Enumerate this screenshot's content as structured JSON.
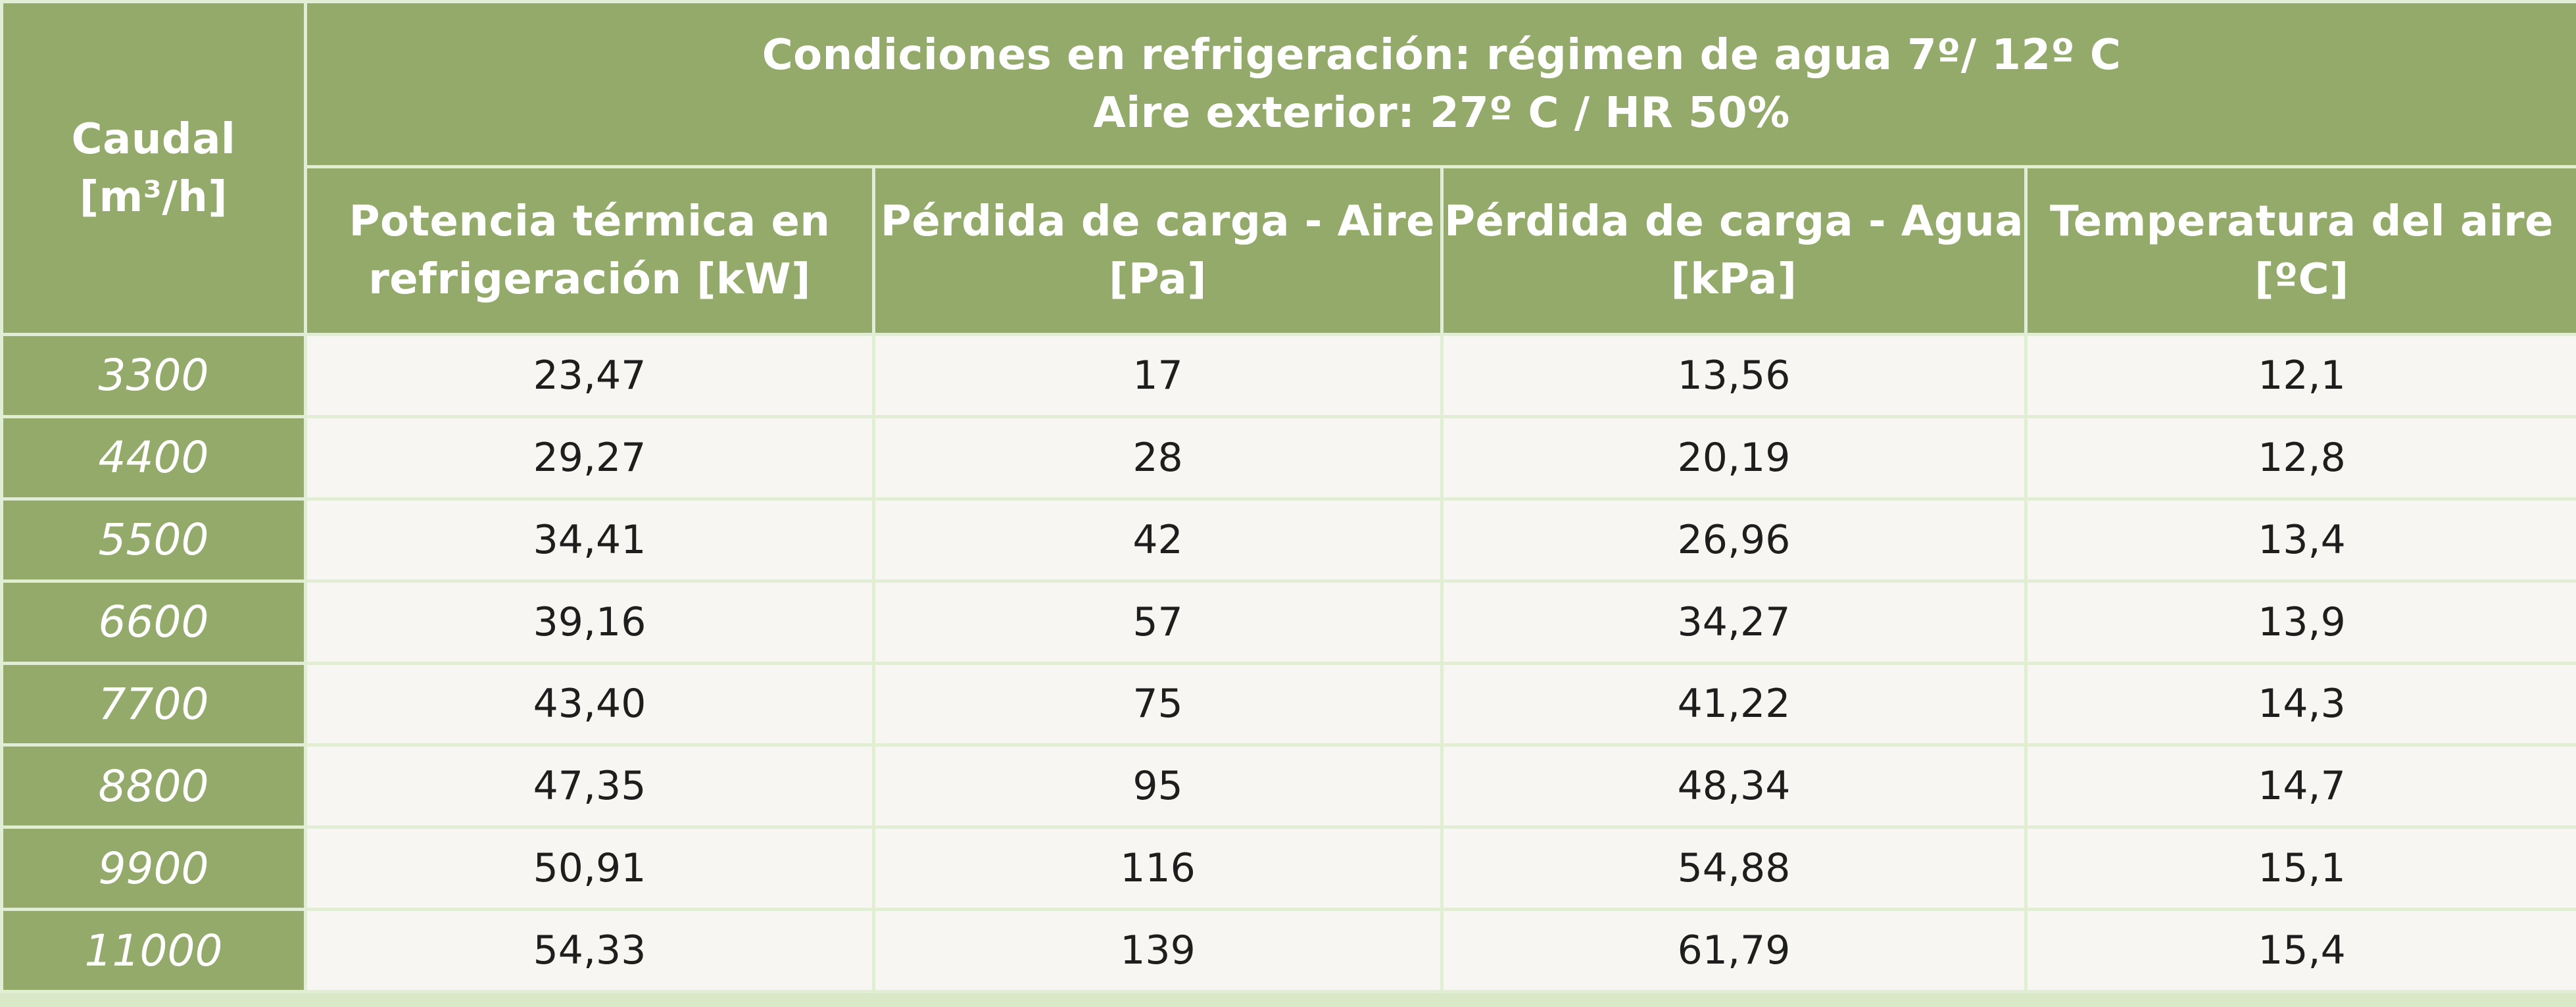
{
  "table": {
    "flow_header": [
      "Caudal",
      "[m³/h]"
    ],
    "conditions_title": [
      "Condiciones en refrigeración: régimen de agua 7º/ 12º C",
      "Aire exterior: 27º C / HR 50%"
    ],
    "columns": [
      [
        "Potencia térmica en",
        "refrigeración  [kW]"
      ],
      [
        "Pérdida de carga - Aire",
        "[Pa]"
      ],
      [
        "Pérdida de carga - Agua",
        "[kPa]"
      ],
      [
        "Temperatura del aire",
        "[ºC]"
      ]
    ],
    "rows": [
      {
        "flow": "3300",
        "cells": [
          "23,47",
          "17",
          "13,56",
          "12,1"
        ]
      },
      {
        "flow": "4400",
        "cells": [
          "29,27",
          "28",
          "20,19",
          "12,8"
        ]
      },
      {
        "flow": "5500",
        "cells": [
          "34,41",
          "42",
          "26,96",
          "13,4"
        ]
      },
      {
        "flow": "6600",
        "cells": [
          "39,16",
          "57",
          "34,27",
          "13,9"
        ]
      },
      {
        "flow": "7700",
        "cells": [
          "43,40",
          "75",
          "41,22",
          "14,3"
        ]
      },
      {
        "flow": "8800",
        "cells": [
          "47,35",
          "95",
          "48,34",
          "14,7"
        ]
      },
      {
        "flow": "9900",
        "cells": [
          "50,91",
          "116",
          "54,88",
          "15,1"
        ]
      },
      {
        "flow": "11000",
        "cells": [
          "54,33",
          "139",
          "61,79",
          "15,4"
        ]
      }
    ]
  },
  "colors": {
    "header_green": "#93aa6b",
    "grid_line": "#e2eed4",
    "cell_background": "#f7f6f2",
    "text_dark": "#1e1e1e",
    "text_light": "#ffffff"
  }
}
